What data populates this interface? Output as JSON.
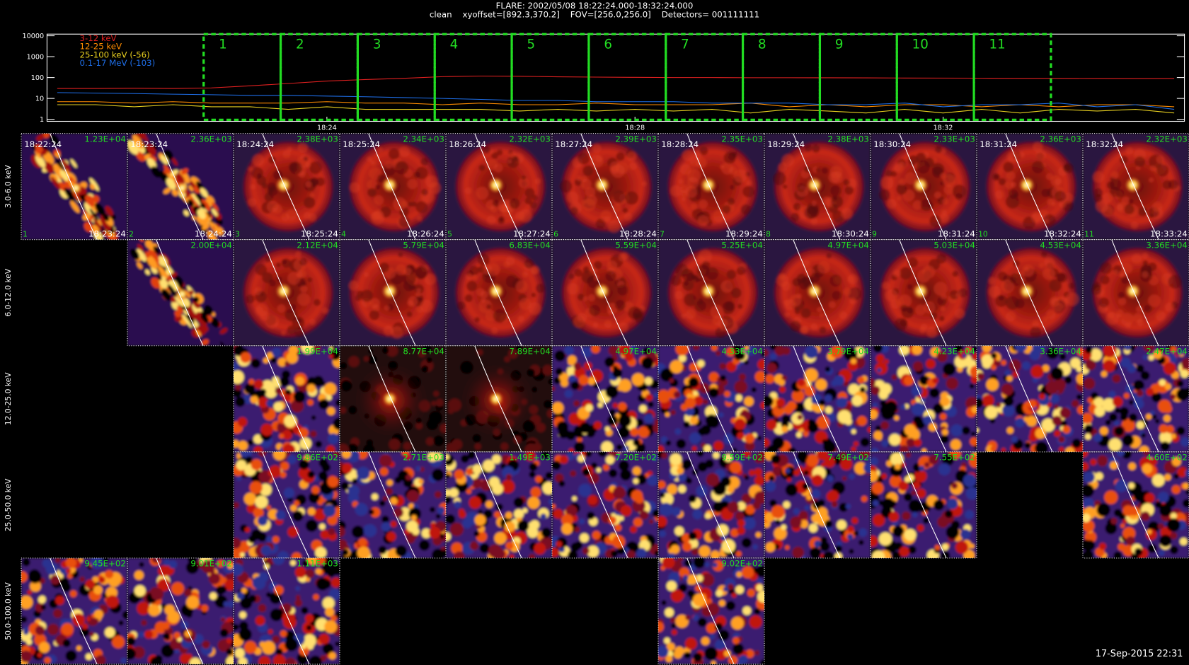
{
  "header": {
    "title": "FLARE: 2002/05/08 18:22:24.000-18:32:24.000",
    "subtitle": "clean    xyoffset=[892.3,370.2]    FOV=[256.0,256.0]    Detectors= 001111111"
  },
  "chart_data": {
    "type": "line",
    "log_scale": true,
    "ylim": [
      0.8,
      12000
    ],
    "yticks": [
      1,
      10,
      100,
      1000,
      10000
    ],
    "xlim": [
      "18:20:22",
      "18:35:08"
    ],
    "xticks": [
      "18:24",
      "18:28",
      "18:32"
    ],
    "legend": "top-left",
    "x": [
      "18:20:30",
      "18:21:00",
      "18:21:30",
      "18:22:00",
      "18:22:30",
      "18:23:00",
      "18:23:30",
      "18:24:00",
      "18:24:30",
      "18:25:00",
      "18:25:30",
      "18:26:00",
      "18:26:30",
      "18:27:00",
      "18:27:30",
      "18:28:00",
      "18:28:30",
      "18:29:00",
      "18:29:30",
      "18:30:00",
      "18:30:30",
      "18:31:00",
      "18:31:30",
      "18:32:00",
      "18:32:30",
      "18:33:00",
      "18:33:30",
      "18:34:00",
      "18:34:30",
      "18:35:00"
    ],
    "series": [
      {
        "name": "3-12 keV",
        "color": "#e02020",
        "values": [
          30,
          30,
          31,
          30,
          32,
          40,
          52,
          68,
          80,
          92,
          110,
          118,
          115,
          108,
          105,
          102,
          100,
          100,
          98,
          98,
          97,
          96,
          95,
          94,
          93,
          92,
          92,
          91,
          90,
          90
        ]
      },
      {
        "name": "12-25 keV",
        "color": "#ff8c00",
        "values": [
          7,
          7,
          6,
          7,
          6,
          6,
          6,
          7,
          6,
          6,
          5,
          6,
          5,
          5,
          6,
          5,
          5,
          5,
          6,
          4,
          5,
          4,
          5,
          5,
          4,
          5,
          4,
          5,
          5,
          4
        ]
      },
      {
        "name": "25-100 keV (-56)",
        "color": "#e8d020",
        "values": [
          5,
          5,
          4,
          5,
          4,
          4,
          3,
          4,
          3,
          3,
          3,
          3,
          2.5,
          3,
          2.5,
          3,
          2.5,
          3,
          2,
          3,
          2.5,
          2,
          3,
          2,
          3,
          2,
          3,
          2.5,
          3,
          2
        ]
      },
      {
        "name": "0.1-17 MeV (-103)",
        "color": "#1e6ee8",
        "values": [
          19,
          18,
          17,
          16,
          15,
          14,
          14,
          13,
          12,
          11,
          10,
          9,
          8,
          8,
          7,
          7,
          7,
          6,
          6,
          6,
          5,
          5,
          6,
          4,
          5,
          5,
          6,
          4,
          5,
          3
        ]
      }
    ],
    "intervals": [
      "1",
      "2",
      "3",
      "4",
      "5",
      "6",
      "7",
      "8",
      "9",
      "10",
      "11"
    ],
    "interval_color": "#22dd22"
  },
  "image_grid": {
    "rows": [
      {
        "label": "3.0-6.0 keV",
        "panels": [
          {
            "start": "18:22:24",
            "end": "18:23:24",
            "max": "1.23E+04",
            "number": "1"
          },
          {
            "start": "18:23:24",
            "end": "18:24:24",
            "max": "2.36E+03",
            "number": "2"
          },
          {
            "start": "18:24:24",
            "end": "18:25:24",
            "max": "2.38E+03",
            "number": "3"
          },
          {
            "start": "18:25:24",
            "end": "18:26:24",
            "max": "2.34E+03",
            "number": "4"
          },
          {
            "start": "18:26:24",
            "end": "18:27:24",
            "max": "2.32E+03",
            "number": "5"
          },
          {
            "start": "18:27:24",
            "end": "18:28:24",
            "max": "2.39E+03",
            "number": "6"
          },
          {
            "start": "18:28:24",
            "end": "18:29:24",
            "max": "2.35E+03",
            "number": "7"
          },
          {
            "start": "18:29:24",
            "end": "18:30:24",
            "max": "2.38E+03",
            "number": "8"
          },
          {
            "start": "18:30:24",
            "end": "18:31:24",
            "max": "2.33E+03",
            "number": "9"
          },
          {
            "start": "18:31:24",
            "end": "18:32:24",
            "max": "2.36E+03",
            "number": "10"
          },
          {
            "start": "18:32:24",
            "end": "18:33:24",
            "max": "2.32E+03",
            "number": "11"
          }
        ]
      },
      {
        "label": "6.0-12.0 keV",
        "panels": [
          null,
          {
            "max": "2.00E+04"
          },
          {
            "max": "2.12E+04"
          },
          {
            "max": "5.79E+04"
          },
          {
            "max": "6.83E+04"
          },
          {
            "max": "5.59E+04"
          },
          {
            "max": "5.25E+04"
          },
          {
            "max": "4.97E+04"
          },
          {
            "max": "5.03E+04"
          },
          {
            "max": "4.53E+04"
          },
          {
            "max": "3.36E+04"
          }
        ]
      },
      {
        "label": "12.0-25.0 keV",
        "panels": [
          null,
          null,
          {
            "max": "1.99E+04"
          },
          {
            "max": "8.77E+04"
          },
          {
            "max": "7.89E+04"
          },
          {
            "max": "4.97E+04"
          },
          {
            "max": "4.33E+04"
          },
          {
            "max": "3.79E+04"
          },
          {
            "max": "4.23E+04"
          },
          {
            "max": "3.36E+04"
          },
          {
            "max": "2.47E+04"
          }
        ]
      },
      {
        "label": "25.0-50.0 keV",
        "panels": [
          null,
          null,
          {
            "max": "9.86E+02"
          },
          {
            "max": "2.71E+03"
          },
          {
            "max": "1.49E+03"
          },
          {
            "max": "7.20E+02"
          },
          {
            "max": "9.59E+02"
          },
          {
            "max": "7.49E+02"
          },
          {
            "max": "7.55E+02"
          },
          null,
          {
            "max": "4.60E+02"
          }
        ]
      },
      {
        "label": "50.0-100.0 keV",
        "panels": [
          {
            "max": "9.45E+02"
          },
          {
            "max": "9.01E+02"
          },
          {
            "max": "1.11E+03"
          },
          null,
          null,
          null,
          {
            "max": "9.02E+02"
          },
          null,
          null,
          null,
          null
        ]
      }
    ]
  },
  "footer": "17-Sep-2015 22:31"
}
